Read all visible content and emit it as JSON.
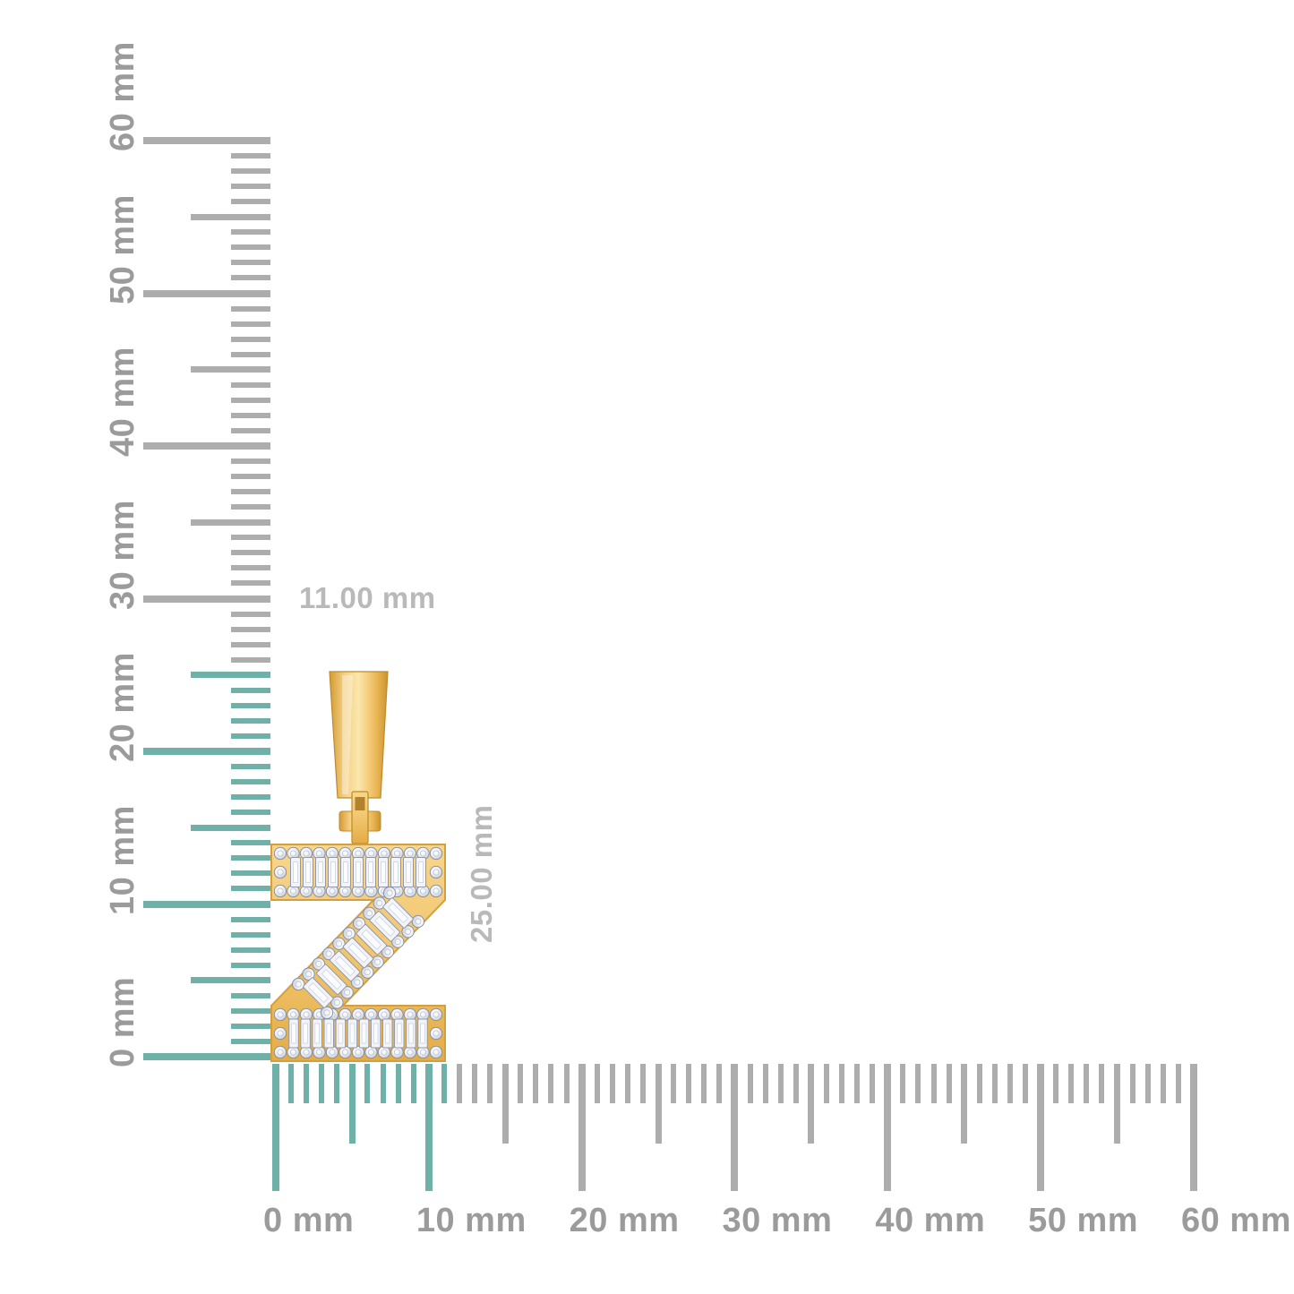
{
  "image_type": "jewelry pendant dimension diagram",
  "pendant": {
    "letter": "Z",
    "description": "yellow gold initial Z pendant set with round and baguette diamonds, with tapered bail",
    "width_label": "11.00 mm",
    "height_label": "25.00 mm"
  },
  "rulers": {
    "unit": "mm",
    "vertical": {
      "min_mm": 0,
      "max_mm": 60,
      "minor_step_mm": 1,
      "medium_step_mm": 5,
      "major_step_mm": 10,
      "major_labels": [
        "0 mm",
        "10 mm",
        "20 mm",
        "30 mm",
        "40 mm",
        "50 mm",
        "60 mm"
      ],
      "highlighted_range_mm": [
        0,
        25
      ]
    },
    "horizontal": {
      "min_mm": 0,
      "max_mm": 60,
      "minor_step_mm": 1,
      "medium_step_mm": 5,
      "major_step_mm": 10,
      "major_labels": [
        "0 mm",
        "10 mm",
        "20 mm",
        "30 mm",
        "40 mm",
        "50 mm",
        "60 mm"
      ],
      "highlighted_range_mm": [
        0,
        11
      ]
    }
  },
  "colors": {
    "background": "#FFFFFF",
    "tick_default": "#ADADAD",
    "tick_highlight": "#6FB1A9",
    "ruler_label": "#9B9B9B",
    "dimension_label": "#B9B9B9",
    "gold_light": "#FBE7AC",
    "gold_mid": "#F2C772",
    "gold_dark": "#DFA93F",
    "gold_edge": "#C08A2B",
    "diamond_light": "#F2F4F9",
    "diamond_dark": "#98A1B3"
  }
}
